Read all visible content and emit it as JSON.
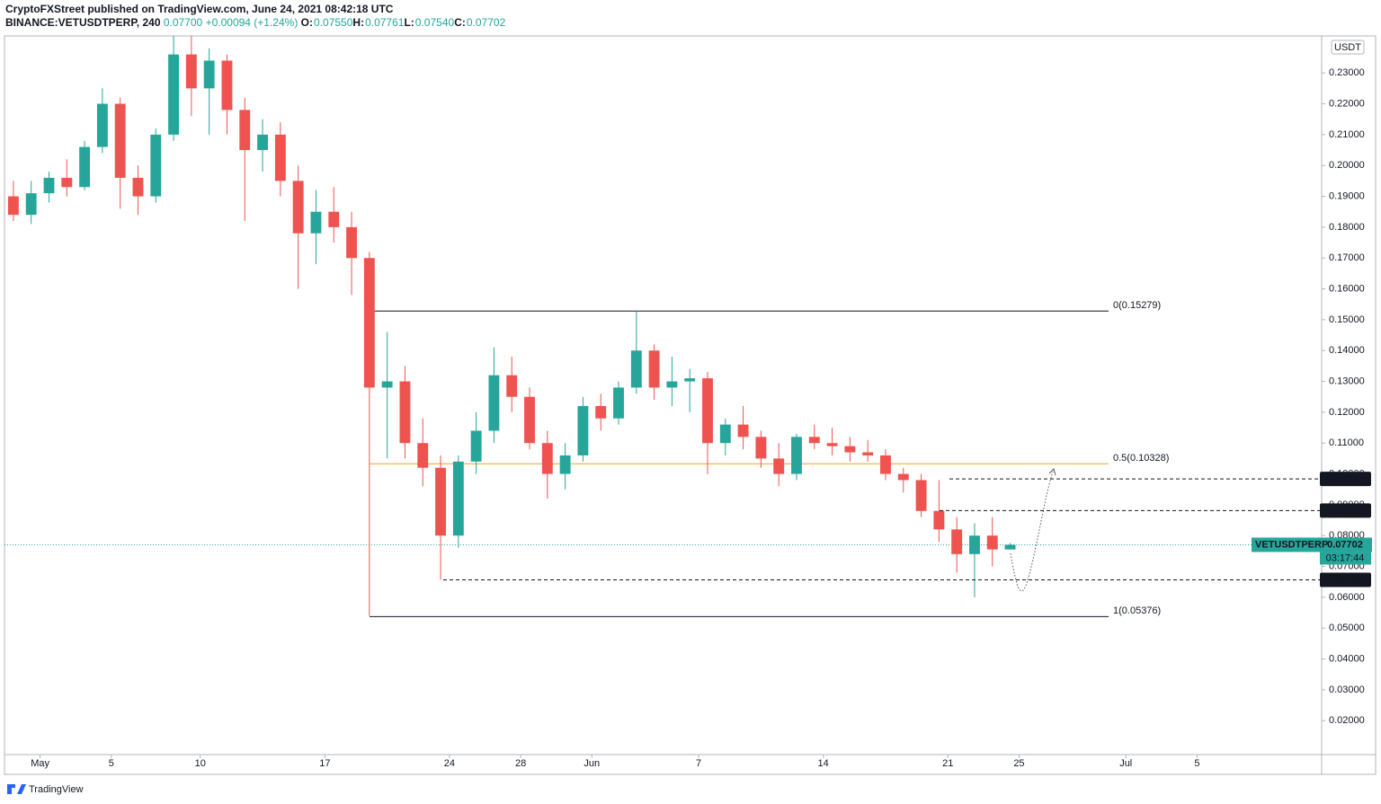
{
  "header": {
    "title": "CryptoFXStreet published on TradingView.com, June 24, 2021 08:42:18 UTC",
    "symbol": "BINANCE:VETUSDTPERP, 240",
    "last": "0.07700",
    "change": "+0.00094 (+1.24%)",
    "ohlc": [
      {
        "label": "O:",
        "value": "0.07550"
      },
      {
        "label": "H:",
        "value": "0.07761"
      },
      {
        "label": "L:",
        "value": "0.07540"
      },
      {
        "label": "C:",
        "value": "0.07702"
      }
    ]
  },
  "chart_data": {
    "type": "candlestick",
    "currency": "USDT",
    "up_color": "#26a69a",
    "down_color": "#ef5350",
    "x": [
      "04-29",
      "04-30",
      "05-01",
      "05-02",
      "05-03",
      "05-04",
      "05-05",
      "05-06",
      "05-07",
      "05-08",
      "05-09",
      "05-10",
      "05-11",
      "05-12",
      "05-13",
      "05-14",
      "05-15",
      "05-16",
      "05-17",
      "05-18",
      "05-19",
      "05-20",
      "05-21",
      "05-22",
      "05-23",
      "05-24",
      "05-25",
      "05-26",
      "05-27",
      "05-28",
      "05-29",
      "05-30",
      "05-31",
      "06-01",
      "06-02",
      "06-03",
      "06-04",
      "06-05",
      "06-06",
      "06-07",
      "06-08",
      "06-09",
      "06-10",
      "06-11",
      "06-12",
      "06-13",
      "06-14",
      "06-15",
      "06-16",
      "06-17",
      "06-18",
      "06-19",
      "06-20",
      "06-21",
      "06-22",
      "06-23",
      "06-24"
    ],
    "open": [
      0.19,
      0.184,
      0.191,
      0.196,
      0.193,
      0.206,
      0.22,
      0.196,
      0.19,
      0.21,
      0.236,
      0.225,
      0.234,
      0.218,
      0.205,
      0.21,
      0.195,
      0.178,
      0.185,
      0.18,
      0.17,
      0.128,
      0.13,
      0.11,
      0.102,
      0.08,
      0.104,
      0.114,
      0.132,
      0.125,
      0.11,
      0.1,
      0.106,
      0.122,
      0.118,
      0.128,
      0.14,
      0.128,
      0.13,
      0.131,
      0.11,
      0.116,
      0.112,
      0.105,
      0.1,
      0.112,
      0.11,
      0.109,
      0.107,
      0.106,
      0.1,
      0.098,
      0.088,
      0.082,
      0.074,
      0.08,
      0.0755
    ],
    "high": [
      0.195,
      0.195,
      0.198,
      0.202,
      0.208,
      0.225,
      0.222,
      0.2,
      0.212,
      0.242,
      0.242,
      0.238,
      0.236,
      0.222,
      0.215,
      0.214,
      0.2,
      0.192,
      0.193,
      0.185,
      0.172,
      0.146,
      0.135,
      0.118,
      0.106,
      0.106,
      0.12,
      0.141,
      0.138,
      0.128,
      0.114,
      0.11,
      0.125,
      0.126,
      0.13,
      0.15279,
      0.142,
      0.138,
      0.134,
      0.133,
      0.118,
      0.122,
      0.114,
      0.11,
      0.113,
      0.116,
      0.115,
      0.112,
      0.111,
      0.108,
      0.102,
      0.1,
      0.098,
      0.086,
      0.084,
      0.086,
      0.07761
    ],
    "low": [
      0.182,
      0.181,
      0.188,
      0.19,
      0.192,
      0.204,
      0.186,
      0.184,
      0.188,
      0.208,
      0.216,
      0.21,
      0.21,
      0.182,
      0.198,
      0.19,
      0.16,
      0.168,
      0.175,
      0.158,
      0.054,
      0.105,
      0.105,
      0.096,
      0.0657,
      0.076,
      0.1,
      0.11,
      0.12,
      0.108,
      0.092,
      0.095,
      0.104,
      0.114,
      0.116,
      0.126,
      0.124,
      0.122,
      0.12,
      0.1,
      0.106,
      0.108,
      0.102,
      0.096,
      0.098,
      0.108,
      0.106,
      0.104,
      0.104,
      0.098,
      0.094,
      0.086,
      0.078,
      0.068,
      0.06,
      0.07,
      0.0754
    ],
    "close": [
      0.184,
      0.191,
      0.196,
      0.193,
      0.206,
      0.22,
      0.196,
      0.19,
      0.21,
      0.236,
      0.225,
      0.234,
      0.218,
      0.205,
      0.21,
      0.195,
      0.178,
      0.185,
      0.18,
      0.17,
      0.128,
      0.13,
      0.11,
      0.102,
      0.08,
      0.104,
      0.114,
      0.132,
      0.125,
      0.11,
      0.1,
      0.106,
      0.122,
      0.118,
      0.128,
      0.14,
      0.128,
      0.13,
      0.131,
      0.11,
      0.116,
      0.112,
      0.105,
      0.1,
      0.112,
      0.11,
      0.109,
      0.107,
      0.106,
      0.1,
      0.098,
      0.088,
      0.082,
      0.074,
      0.08,
      0.0755,
      0.07702
    ],
    "xlim": [
      "04-29",
      "07-12"
    ],
    "xticks": [
      {
        "value": "05-01",
        "label": "May"
      },
      {
        "value": "05-05",
        "label": "5"
      },
      {
        "value": "05-10",
        "label": "10"
      },
      {
        "value": "05-17",
        "label": "17"
      },
      {
        "value": "05-24",
        "label": "24"
      },
      {
        "value": "05-28",
        "label": "28"
      },
      {
        "value": "06-01",
        "label": "Jun"
      },
      {
        "value": "06-07",
        "label": "7"
      },
      {
        "value": "06-14",
        "label": "14"
      },
      {
        "value": "06-21",
        "label": "21"
      },
      {
        "value": "06-25",
        "label": "25"
      },
      {
        "value": "07-01",
        "label": "Jul"
      },
      {
        "value": "07-05",
        "label": "5"
      }
    ],
    "ylim": [
      0.009,
      0.242
    ],
    "yticks": [
      {
        "value": 0.02,
        "label": "0.02000"
      },
      {
        "value": 0.03,
        "label": "0.03000"
      },
      {
        "value": 0.04,
        "label": "0.04000"
      },
      {
        "value": 0.05,
        "label": "0.05000"
      },
      {
        "value": 0.06,
        "label": "0.06000"
      },
      {
        "value": 0.07,
        "label": "0.07000"
      },
      {
        "value": 0.08,
        "label": "0.08000"
      },
      {
        "value": 0.09,
        "label": "0.09000"
      },
      {
        "value": 0.1,
        "label": "0.10000"
      },
      {
        "value": 0.11,
        "label": "0.11000"
      },
      {
        "value": 0.12,
        "label": "0.12000"
      },
      {
        "value": 0.13,
        "label": "0.13000"
      },
      {
        "value": 0.14,
        "label": "0.14000"
      },
      {
        "value": 0.15,
        "label": "0.15000"
      },
      {
        "value": 0.16,
        "label": "0.16000"
      },
      {
        "value": 0.17,
        "label": "0.17000"
      },
      {
        "value": 0.18,
        "label": "0.18000"
      },
      {
        "value": 0.19,
        "label": "0.19000"
      },
      {
        "value": 0.2,
        "label": "0.20000"
      },
      {
        "value": 0.21,
        "label": "0.21000"
      },
      {
        "value": 0.22,
        "label": "0.22000"
      },
      {
        "value": 0.23,
        "label": "0.23000"
      }
    ],
    "fib_levels": [
      {
        "value": 0.15279,
        "label": "0(0.15279)",
        "color": "#131722"
      },
      {
        "value": 0.10328,
        "label": "0.5(0.10328)",
        "color": "#f7a21b"
      },
      {
        "value": 0.05376,
        "label": "1(0.05376)",
        "color": "#131722"
      }
    ],
    "price_levels": [
      {
        "value": 0.09837,
        "label": "0.09837"
      },
      {
        "value": 0.0881,
        "label": "0.08810"
      },
      {
        "value": 0.06566,
        "label": "0.06566"
      }
    ],
    "last_price": {
      "symbol": "VETUSDTPERP",
      "value": 0.07702,
      "countdown": "03:17:44",
      "color": "#26a69a"
    }
  },
  "footer": {
    "brand": "TradingView"
  }
}
